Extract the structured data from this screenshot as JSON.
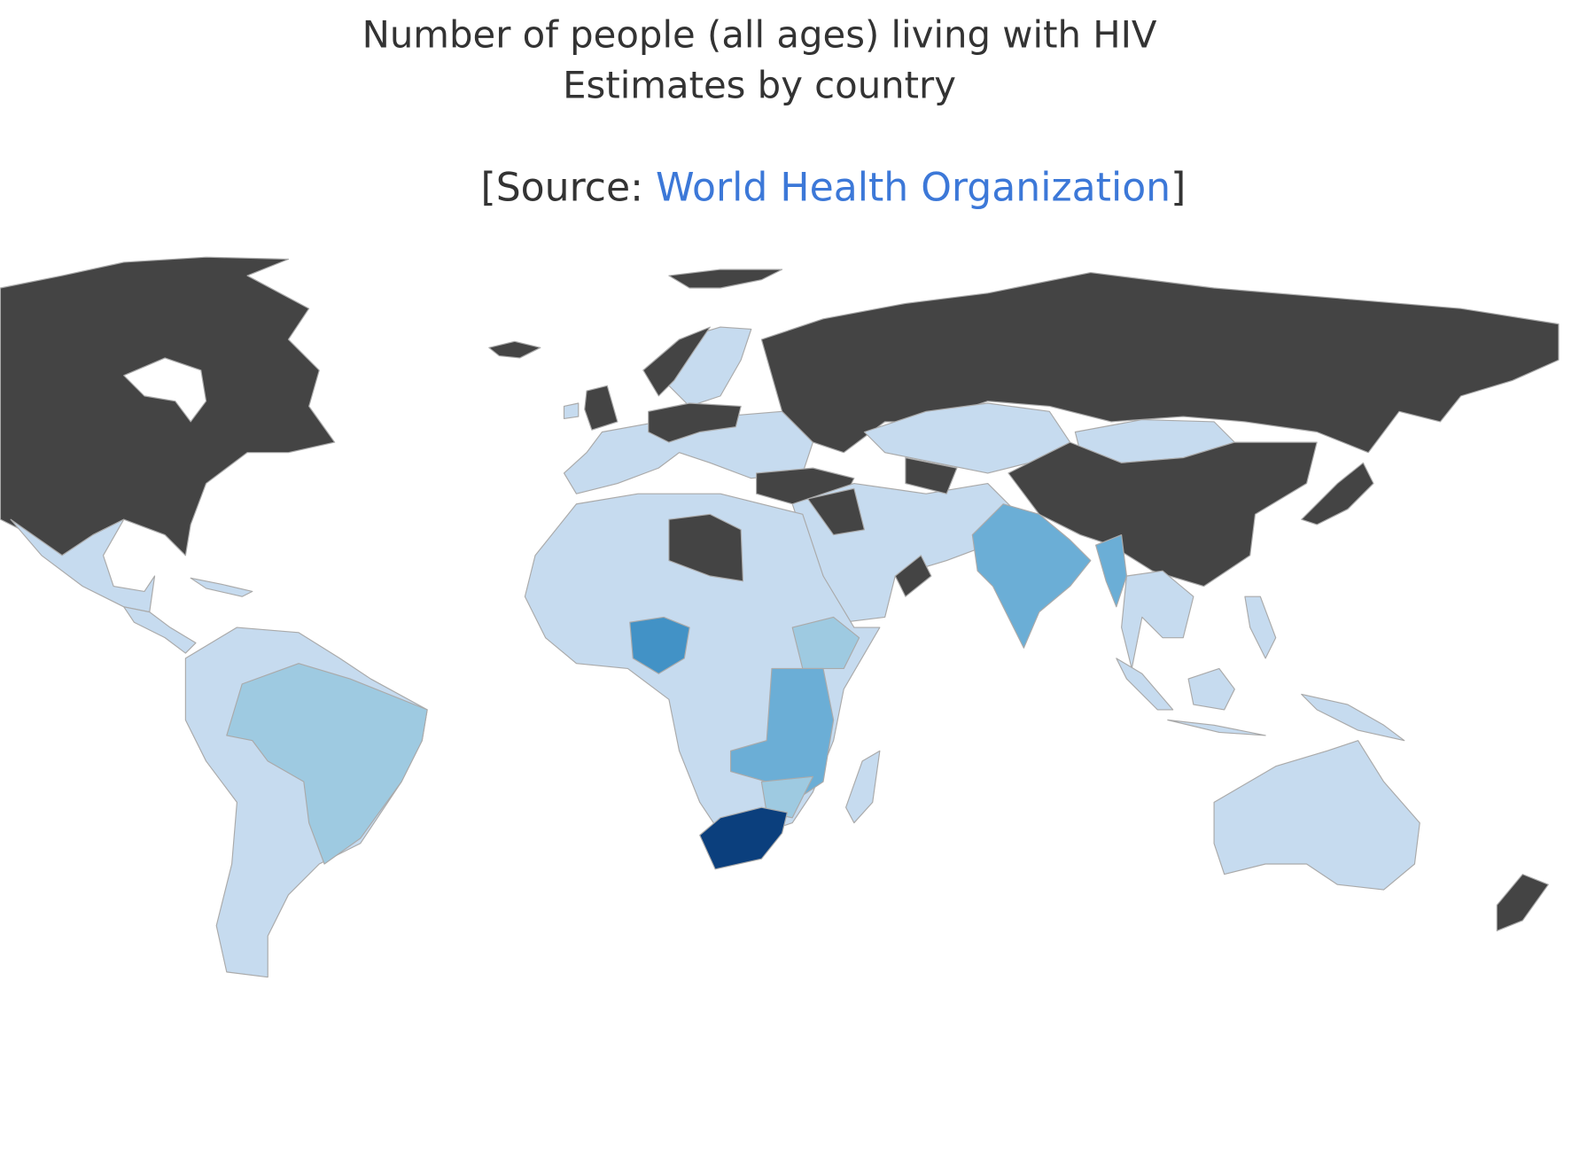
{
  "header": {
    "title_line1": "Number of people (all ages) living with HIV",
    "title_line2": "Estimates by country",
    "source_prefix": "[Source:",
    "source_link": "World Health Organization",
    "source_suffix": "]"
  }
}
